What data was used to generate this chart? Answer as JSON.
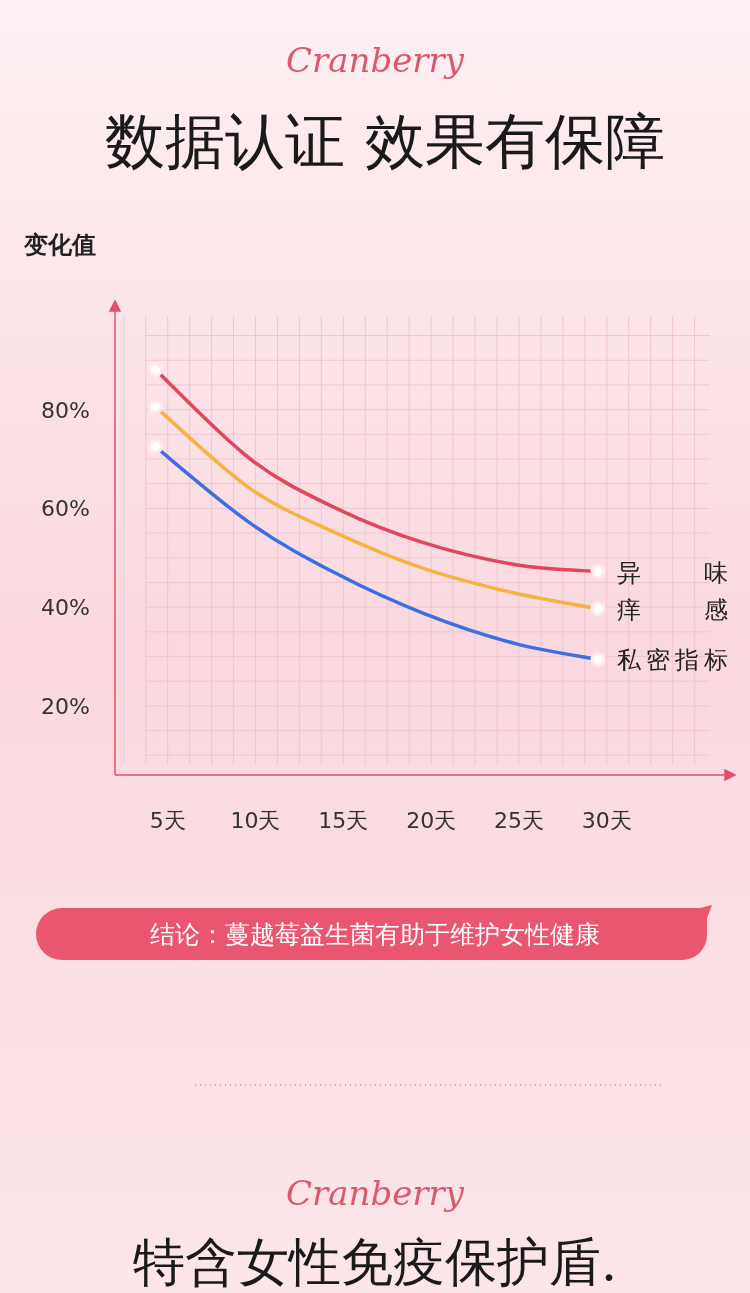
{
  "chart_data": {
    "type": "line",
    "subtitle": "Cranberry",
    "title": "数据认证 效果有保障",
    "ylabel": "变化值",
    "xlim": [
      2,
      37.3
    ],
    "ylim": [
      6,
      102
    ],
    "xticks": [
      {
        "value": 5,
        "label": "5天"
      },
      {
        "value": 10,
        "label": "10天"
      },
      {
        "value": 15,
        "label": "15天"
      },
      {
        "value": 20,
        "label": "20天"
      },
      {
        "value": 25,
        "label": "25天"
      },
      {
        "value": 30,
        "label": "30天"
      }
    ],
    "yticks": [
      {
        "value": 20,
        "label": "20%"
      },
      {
        "value": 40,
        "label": "40%"
      },
      {
        "value": 60,
        "label": "60%"
      },
      {
        "value": 80,
        "label": "80%"
      }
    ],
    "grid": true,
    "line_style": "solid",
    "x": [
      4.3,
      9.7,
      14.6,
      19.6,
      24.8,
      29.5
    ],
    "series": [
      {
        "name": "异味",
        "color": "#e0475e",
        "values": [
          88.1,
          70,
          60,
          53,
          48.6,
          47.2
        ]
      },
      {
        "name": "痒感",
        "color": "#f5b342",
        "values": [
          80.6,
          64,
          55,
          47.8,
          42.8,
          39.7
        ]
      },
      {
        "name": "私密指标",
        "color": "#3d6fe0",
        "values": [
          72.5,
          57,
          46.8,
          38.7,
          32.6,
          29.4
        ]
      }
    ],
    "annotations": [
      "结论：蔓越莓益生菌有助于维护女性健康",
      "Cranberry",
      "特含女性免疫保护盾."
    ]
  }
}
